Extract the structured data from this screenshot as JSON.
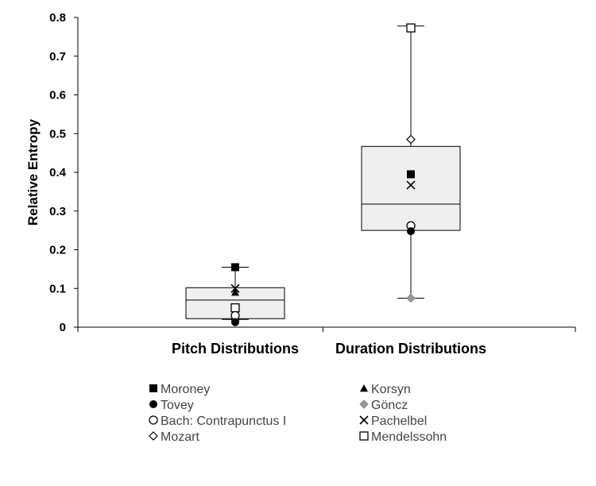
{
  "chart_data": {
    "type": "box",
    "ylabel": "Relative Entropy",
    "xlabel": "",
    "ylim": [
      0,
      0.8
    ],
    "yticks": [
      0,
      0.1,
      0.2,
      0.3,
      0.4,
      0.5,
      0.6,
      0.7,
      0.8
    ],
    "ytick_labels": [
      "0",
      "0.1",
      "0.2",
      "0.3",
      "0.4",
      "0.5",
      "0.6",
      "0.7",
      "0.8"
    ],
    "grid": false,
    "legend_position": "bottom",
    "categories": [
      "Pitch Distributions",
      "Duration Distributions"
    ],
    "boxes": [
      {
        "category": "Pitch Distributions",
        "whisker_low": 0.02,
        "q1": 0.022,
        "median": 0.07,
        "q3": 0.102,
        "whisker_high": 0.155
      },
      {
        "category": "Duration Distributions",
        "whisker_low": 0.075,
        "q1": 0.25,
        "median": 0.318,
        "q3": 0.467,
        "whisker_high": 0.778
      }
    ],
    "series": [
      {
        "name": "Moroney",
        "marker": "square-filled",
        "values": [
          0.155,
          0.395
        ]
      },
      {
        "name": "Korsyn",
        "marker": "triangle-filled",
        "values": [
          0.09,
          null
        ]
      },
      {
        "name": "Tovey",
        "marker": "circle-filled",
        "values": [
          0.013,
          0.248
        ]
      },
      {
        "name": "Göncz",
        "marker": "diamond-gray",
        "values": [
          0.015,
          0.075
        ]
      },
      {
        "name": "Bach: Contrapunctus I",
        "marker": "circle-open",
        "values": [
          0.03,
          0.262
        ]
      },
      {
        "name": "Pachelbel",
        "marker": "x-cross",
        "values": [
          0.1,
          0.367
        ]
      },
      {
        "name": "Mozart",
        "marker": "diamond-open",
        "values": [
          0.02,
          0.485
        ]
      },
      {
        "name": "Mendelssohn",
        "marker": "square-open",
        "values": [
          0.05,
          0.773
        ]
      }
    ],
    "colors": {
      "box_fill": "#efefef",
      "box_stroke": "#000000",
      "gray_marker": "#9a9a9a"
    }
  }
}
